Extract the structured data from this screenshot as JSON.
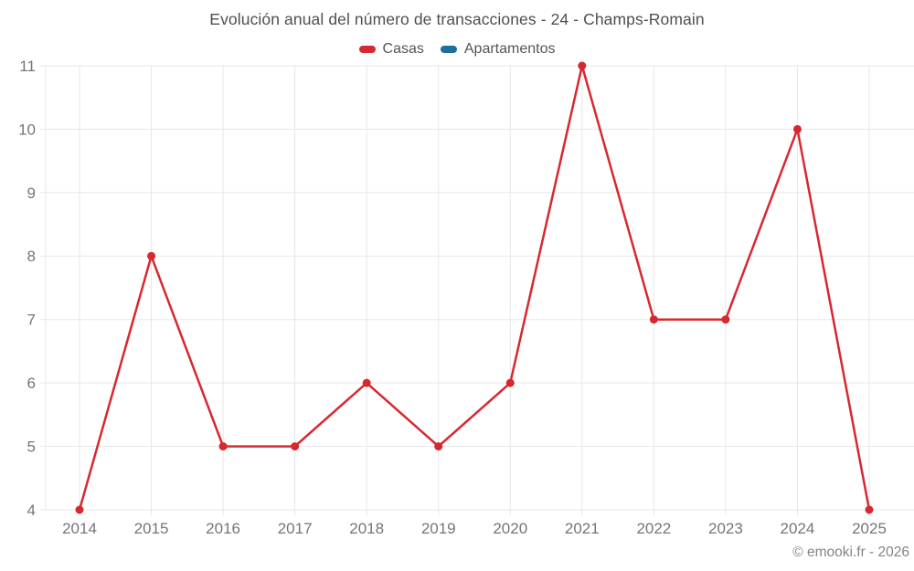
{
  "header": {
    "title": "Evolución anual del número de transacciones - 24 - Champs-Romain"
  },
  "legend": {
    "items": [
      {
        "label": "Casas",
        "color": "#d7282f"
      },
      {
        "label": "Apartamentos",
        "color": "#1b6f9e"
      }
    ]
  },
  "footer": {
    "copyright": "© emooki.fr - 2026"
  },
  "chart_data": {
    "type": "line",
    "title": "Evolución anual del número de transacciones - 24 - Champs-Romain",
    "categories": [
      "2014",
      "2015",
      "2016",
      "2017",
      "2018",
      "2019",
      "2020",
      "2021",
      "2022",
      "2023",
      "2024",
      "2025"
    ],
    "series": [
      {
        "name": "Casas",
        "color": "#d7282f",
        "values": [
          4,
          8,
          5,
          5,
          6,
          5,
          6,
          11,
          7,
          7,
          10,
          4
        ]
      },
      {
        "name": "Apartamentos",
        "color": "#1b6f9e",
        "values": []
      }
    ],
    "xlabel": "",
    "ylabel": "",
    "ylim": [
      4,
      11
    ],
    "yticks": [
      4,
      5,
      6,
      7,
      8,
      9,
      10,
      11
    ],
    "grid": true,
    "legend_position": "top",
    "grid_color": "#e7e7e7",
    "axis_label_color": "#757575"
  }
}
